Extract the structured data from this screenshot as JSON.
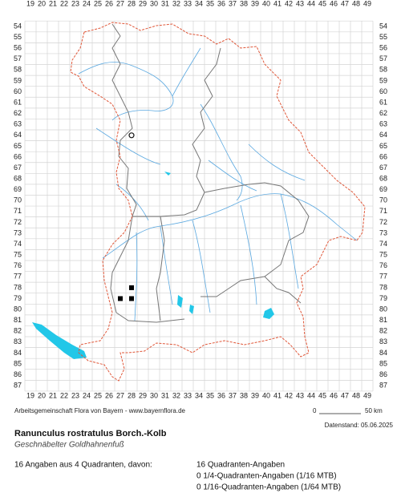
{
  "grid": {
    "columns": [
      19,
      20,
      21,
      22,
      23,
      24,
      25,
      26,
      27,
      28,
      29,
      30,
      31,
      32,
      33,
      34,
      35,
      36,
      37,
      38,
      39,
      40,
      41,
      42,
      43,
      44,
      45,
      46,
      47,
      48,
      49
    ],
    "rows": [
      54,
      55,
      56,
      57,
      58,
      59,
      60,
      61,
      62,
      63,
      64,
      65,
      66,
      67,
      68,
      69,
      70,
      71,
      72,
      73,
      74,
      75,
      76,
      77,
      78,
      79,
      80,
      81,
      82,
      83,
      84,
      85,
      86,
      87
    ]
  },
  "records": [
    {
      "column": 28,
      "row": 78,
      "symbol": "square"
    },
    {
      "column": 27,
      "row": 79,
      "symbol": "square"
    },
    {
      "column": 28,
      "row": 79,
      "symbol": "square"
    },
    {
      "column": 28,
      "row": 64,
      "symbol": "circle"
    }
  ],
  "credit": "Arbeitsgemeinschaft Flora von Bayern - www.bayernflora.de",
  "scale": {
    "start": "0",
    "end": "50 km"
  },
  "date": "Datenstand: 05.06.2025",
  "species": "Ranunculus rostratulus Borch.-Kolb",
  "common_name": "Geschnäbelter Goldhahnenfuß",
  "summary": "16 Angaben aus 4 Quadranten, davon:",
  "counts": [
    "16 Quadranten-Angaben",
    "0 1/4-Quadranten-Angaben (1/16 MTB)",
    "0 1/16-Quadranten-Angaben (1/64 MTB)"
  ]
}
